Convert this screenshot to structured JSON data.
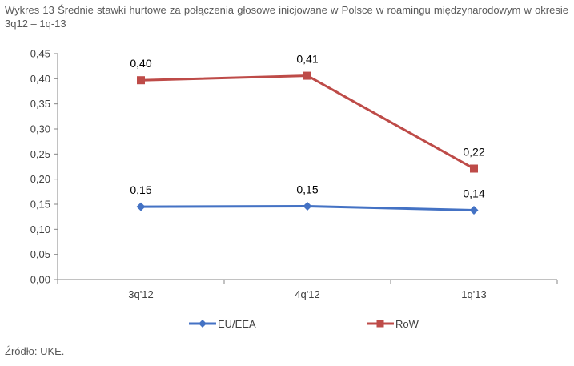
{
  "caption": "Wykres 13 Średnie stawki hurtowe za połączenia głosowe inicjowane w Polsce w roamingu międzynarodowym w okresie 3q12 – 1q-13",
  "source": "Źródło: UKE.",
  "chart_data": {
    "type": "line",
    "categories": [
      "3q'12",
      "4q'12",
      "1q'13"
    ],
    "ylim": [
      0,
      0.45
    ],
    "yticks": [
      "0,00",
      "0,05",
      "0,10",
      "0,15",
      "0,20",
      "0,25",
      "0,30",
      "0,35",
      "0,40",
      "0,45"
    ],
    "grid": false,
    "legend_position": "bottom",
    "series": [
      {
        "name": "EU/EEA",
        "values": [
          0.145,
          0.146,
          0.138
        ],
        "labels": [
          "0,15",
          "0,15",
          "0,14"
        ],
        "color": "#4472C4",
        "marker": "diamond"
      },
      {
        "name": "RoW",
        "values": [
          0.397,
          0.406,
          0.221
        ],
        "labels": [
          "0,40",
          "0,41",
          "0,22"
        ],
        "color": "#BE4B48",
        "marker": "square"
      }
    ]
  }
}
